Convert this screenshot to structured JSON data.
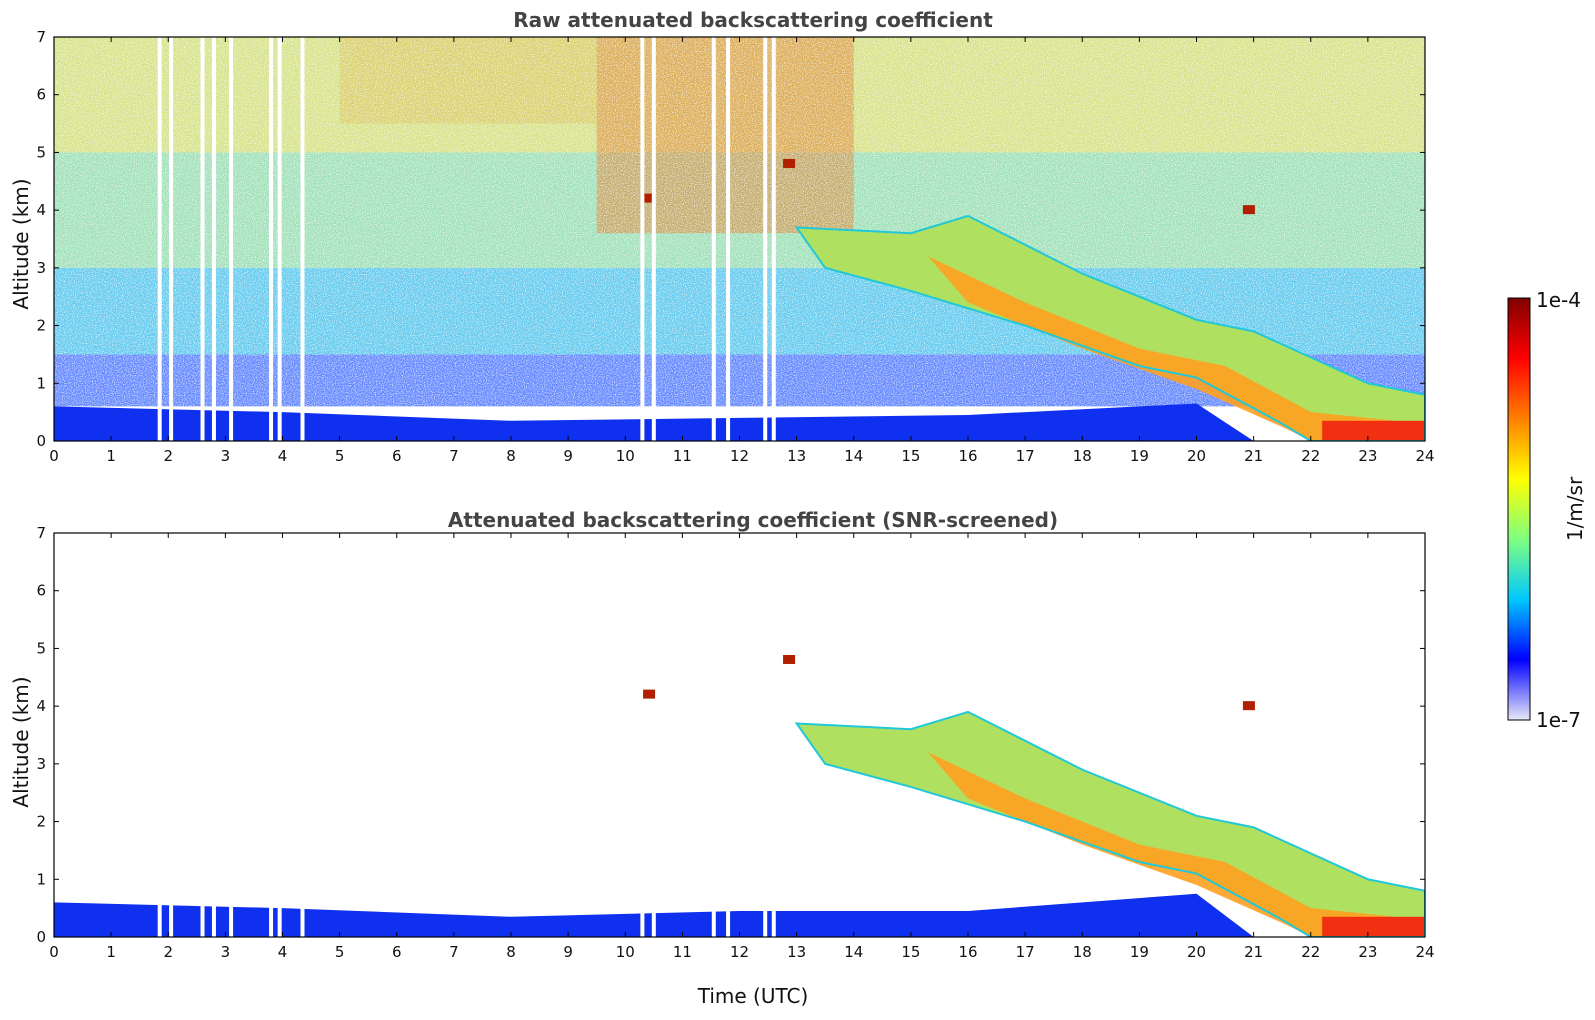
{
  "figure": {
    "colorbar": {
      "label": "1/m/sr",
      "max_label": "1e-4",
      "min_label": "1e-7",
      "scale": "log",
      "range": [
        1e-07,
        0.0001
      ],
      "colormap": [
        "#e8e8f8",
        "#0000ff",
        "#00c8ff",
        "#80ff80",
        "#ffff00",
        "#ff8000",
        "#ff0000",
        "#800000"
      ]
    }
  },
  "chart_data": [
    {
      "type": "heatmap",
      "title": "Raw attenuated backscattering coefficient",
      "xlabel": "",
      "ylabel": "Altitude (km)",
      "xlim": [
        0,
        24
      ],
      "ylim": [
        0,
        7
      ],
      "xticks": [
        "0",
        "1",
        "2",
        "3",
        "4",
        "5",
        "6",
        "7",
        "8",
        "9",
        "10",
        "11",
        "12",
        "13",
        "14",
        "15",
        "16",
        "17",
        "18",
        "19",
        "20",
        "21",
        "22",
        "23",
        "24"
      ],
      "yticks": [
        "0",
        "1",
        "2",
        "3",
        "4",
        "5",
        "6",
        "7"
      ],
      "grid": false,
      "data_gaps_utc": [
        1.85,
        2.05,
        2.6,
        2.8,
        3.1,
        3.8,
        3.95,
        4.35,
        10.3,
        10.5,
        11.55,
        11.8,
        12.45,
        12.6
      ],
      "features": {
        "boundary_layer_top_km": [
          [
            0,
            0.6
          ],
          [
            4,
            0.5
          ],
          [
            8,
            0.35
          ],
          [
            12,
            0.4
          ],
          [
            16,
            0.45
          ],
          [
            20,
            0.65
          ],
          [
            21,
            0.0
          ]
        ],
        "cloud_layer_top_km": [
          [
            13,
            3.7
          ],
          [
            15,
            3.6
          ],
          [
            16,
            3.9
          ],
          [
            18,
            2.9
          ],
          [
            20,
            2.1
          ],
          [
            21,
            1.9
          ],
          [
            23,
            1.0
          ],
          [
            24,
            0.8
          ]
        ],
        "cloud_layer_base_km": [
          [
            13.5,
            3.0
          ],
          [
            15,
            2.6
          ],
          [
            17,
            2.0
          ],
          [
            19,
            1.3
          ],
          [
            20,
            1.1
          ],
          [
            21.5,
            0.3
          ],
          [
            22,
            0.0
          ],
          [
            24,
            0.0
          ]
        ],
        "isolated_features": [
          {
            "x": 12.85,
            "y": 4.8
          },
          {
            "x": 20.9,
            "y": 4.0
          },
          {
            "x": 10.4,
            "y": 4.2
          }
        ]
      }
    },
    {
      "type": "heatmap",
      "title": "Attenuated backscattering coefficient (SNR-screened)",
      "xlabel": "Time (UTC)",
      "ylabel": "Altitude (km)",
      "xlim": [
        0,
        24
      ],
      "ylim": [
        0,
        7
      ],
      "xticks": [
        "0",
        "1",
        "2",
        "3",
        "4",
        "5",
        "6",
        "7",
        "8",
        "9",
        "10",
        "11",
        "12",
        "13",
        "14",
        "15",
        "16",
        "17",
        "18",
        "19",
        "20",
        "21",
        "22",
        "23",
        "24"
      ],
      "yticks": [
        "0",
        "1",
        "2",
        "3",
        "4",
        "5",
        "6",
        "7"
      ],
      "grid": false,
      "data_gaps_utc": [
        1.85,
        2.05,
        2.6,
        2.8,
        3.1,
        3.8,
        3.95,
        4.35,
        10.3,
        10.5,
        11.55,
        11.8,
        12.45,
        12.6
      ],
      "features": {
        "boundary_layer_top_km": [
          [
            0,
            0.6
          ],
          [
            4,
            0.5
          ],
          [
            8,
            0.35
          ],
          [
            12,
            0.45
          ],
          [
            16,
            0.45
          ],
          [
            20,
            0.75
          ],
          [
            21,
            0.0
          ]
        ],
        "cloud_layer_top_km": [
          [
            13,
            3.7
          ],
          [
            15,
            3.6
          ],
          [
            16,
            3.9
          ],
          [
            18,
            2.9
          ],
          [
            20,
            2.1
          ],
          [
            21,
            1.9
          ],
          [
            23,
            1.0
          ],
          [
            24,
            0.8
          ]
        ],
        "cloud_layer_base_km": [
          [
            13.5,
            3.0
          ],
          [
            15,
            2.6
          ],
          [
            17,
            2.0
          ],
          [
            19,
            1.3
          ],
          [
            20,
            1.1
          ],
          [
            21.5,
            0.3
          ],
          [
            22,
            0.0
          ],
          [
            24,
            0.0
          ]
        ],
        "isolated_features": [
          {
            "x": 12.85,
            "y": 4.8
          },
          {
            "x": 20.9,
            "y": 4.0
          },
          {
            "x": 10.4,
            "y": 4.2
          }
        ]
      }
    }
  ]
}
